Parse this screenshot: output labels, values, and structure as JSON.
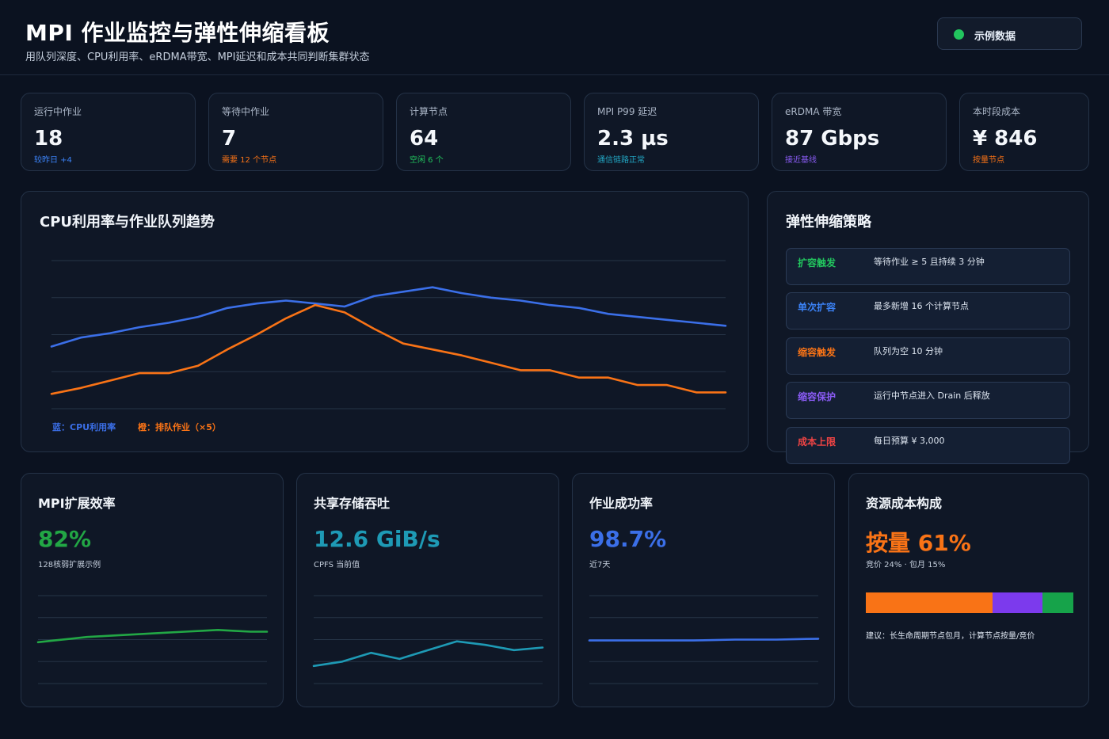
{
  "header": {
    "title": "MPI 作业监控与弹性伸缩看板",
    "subtitle": "用队列深度、CPU利用率、eRDMA带宽、MPI延迟和成本共同判断集群状态",
    "badge_label": "示例数据",
    "badge_color": "#22c55e"
  },
  "kpis": [
    {
      "label": "运行中作业",
      "value": "18",
      "note": "较昨日 +4",
      "note_color": "#3b82f6"
    },
    {
      "label": "等待中作业",
      "value": "7",
      "note": "需要 12 个节点",
      "note_color": "#f97316"
    },
    {
      "label": "计算节点",
      "value": "64",
      "note": "空闲 6 个",
      "note_color": "#22c55e"
    },
    {
      "label": "MPI P99 延迟",
      "value": "2.3 µs",
      "note": "通信链路正常",
      "note_color": "#22a7c4"
    },
    {
      "label": "eRDMA 带宽",
      "value": "87 Gbps",
      "note": "接近基线",
      "note_color": "#8b5cf6"
    },
    {
      "label": "本时段成本",
      "value": "¥ 846",
      "note": "按量节点",
      "note_color": "#f97316"
    }
  ],
  "trend": {
    "title": "CPU利用率与作业队列趋势",
    "legend_cpu": "蓝：CPU利用率",
    "legend_queue": "橙：排队作业（×5）",
    "cpu_color": "#3b6fe8",
    "queue_color": "#f97316"
  },
  "policy": {
    "title": "弹性伸缩策略",
    "rows": [
      {
        "key": "扩容触发",
        "value": "等待作业 ≥ 5 且持续 3 分钟",
        "color": "#22c55e"
      },
      {
        "key": "单次扩容",
        "value": "最多新增 16 个计算节点",
        "color": "#3b82f6"
      },
      {
        "key": "缩容触发",
        "value": "队列为空 10 分钟",
        "color": "#f97316"
      },
      {
        "key": "缩容保护",
        "value": "运行中节点进入 Drain 后释放",
        "color": "#8b5cf6"
      },
      {
        "key": "成本上限",
        "value": "每日预算 ¥ 3,000",
        "color": "#ef4444"
      }
    ]
  },
  "metrics": {
    "scaling": {
      "title": "MPI扩展效率",
      "value": "82%",
      "note": "128核弱扩展示例",
      "color": "#22a745"
    },
    "storage": {
      "title": "共享存储吞吐",
      "value": "12.6 GiB/s",
      "note": "CPFS 当前值",
      "color": "#1e9ab5"
    },
    "success": {
      "title": "作业成功率",
      "value": "98.7%",
      "note": "近7天",
      "color": "#3b6fe8"
    },
    "cost": {
      "title": "资源成本构成",
      "value": "按量 61%",
      "note": "竞价 24% · 包月 15%",
      "color": "#f97316",
      "breakdown": [
        {
          "name": "按量",
          "percent": 61,
          "color": "#f97316"
        },
        {
          "name": "竞价",
          "percent": 24,
          "color": "#7c3aed"
        },
        {
          "name": "包月",
          "percent": 15,
          "color": "#16a34a"
        }
      ],
      "advice": "建议：长生命周期节点包月，计算节点按量/竞价"
    }
  },
  "chart_data": [
    {
      "type": "line",
      "title": "CPU利用率与作业队列趋势",
      "x": [
        0,
        1,
        2,
        3,
        4,
        5,
        6,
        7,
        8,
        9,
        10,
        11,
        12,
        13,
        14,
        15,
        16,
        17,
        18,
        19,
        20,
        21,
        22,
        23
      ],
      "series": [
        {
          "name": "蓝：CPU利用率",
          "values": [
            42,
            48,
            51,
            55,
            58,
            62,
            68,
            71,
            73,
            71,
            69,
            76,
            79,
            82,
            78,
            75,
            73,
            70,
            68,
            64,
            62,
            60,
            58,
            56
          ]
        },
        {
          "name": "橙：排队作业（×5）",
          "values": [
            10,
            14,
            19,
            24,
            24,
            29,
            40,
            50,
            61,
            70,
            65,
            54,
            44,
            40,
            36,
            31,
            26,
            26,
            21,
            21,
            16,
            16,
            11,
            11
          ]
        }
      ],
      "ylim": [
        0,
        100
      ]
    },
    {
      "type": "line",
      "title": "MPI扩展效率",
      "values": [
        47,
        49,
        51,
        53,
        54,
        55,
        56,
        57,
        58,
        59,
        60,
        61,
        60,
        59,
        59
      ],
      "ylim": [
        0,
        100
      ]
    },
    {
      "type": "line",
      "title": "共享存储吞吐",
      "values": [
        20,
        25,
        35,
        28,
        38,
        48,
        44,
        38,
        41
      ],
      "ylim": [
        0,
        100
      ]
    },
    {
      "type": "line",
      "title": "作业成功率",
      "values": [
        49,
        49,
        49,
        49,
        49,
        49,
        49.5,
        50,
        50,
        50,
        50.5,
        51
      ],
      "ylim": [
        0,
        100
      ]
    }
  ]
}
